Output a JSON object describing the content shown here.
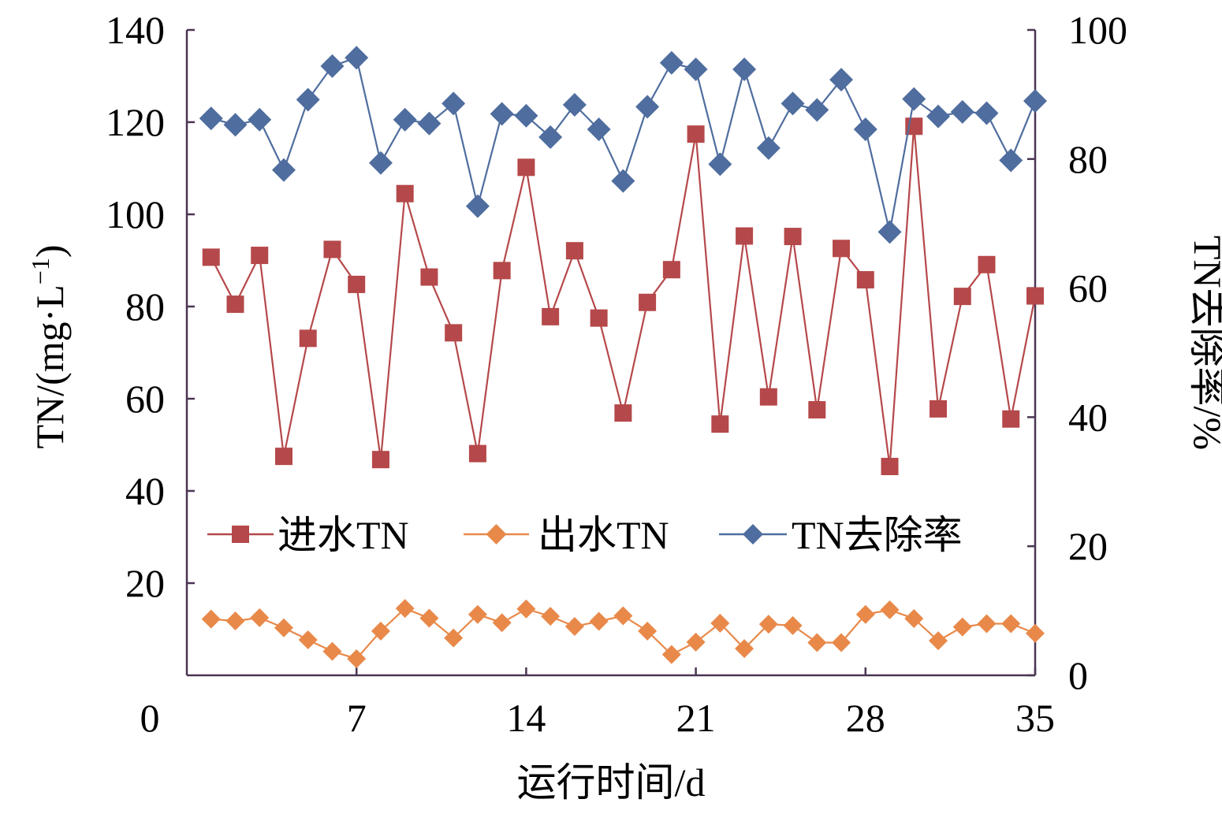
{
  "chart_data": {
    "type": "line",
    "xlabel": "运行时间/d",
    "ylabel_left": "TN/(mg·L",
    "ylabel_left_sup": "−1",
    "ylabel_left_end": ")",
    "ylabel_right": "TN去除率/%",
    "xlim": [
      0,
      35
    ],
    "ylim_left": [
      0,
      140
    ],
    "ylim_right": [
      0,
      100
    ],
    "x_ticks": [
      0,
      7,
      14,
      21,
      28,
      35
    ],
    "y_left_ticks": [
      20,
      40,
      60,
      80,
      100,
      120,
      140
    ],
    "y_left_zero_label": "0",
    "y_right_ticks": [
      0,
      20,
      40,
      60,
      80,
      100
    ],
    "grid": false,
    "legend_position": "lower-center",
    "x": [
      1,
      2,
      3,
      4,
      5,
      6,
      7,
      8,
      9,
      10,
      11,
      12,
      13,
      14,
      15,
      16,
      17,
      18,
      19,
      20,
      21,
      22,
      23,
      24,
      25,
      26,
      27,
      28,
      29,
      30,
      31,
      32,
      33,
      34,
      35
    ],
    "series": [
      {
        "name": "进水TN",
        "axis": "left",
        "color": "#b5484a",
        "marker": "square",
        "values": [
          90.7,
          80.5,
          91.1,
          47.5,
          73.1,
          92.4,
          84.8,
          46.8,
          104.5,
          86.4,
          74.3,
          48.1,
          87.8,
          110.2,
          77.8,
          92.1,
          77.5,
          56.9,
          80.9,
          88.0,
          117.4,
          54.5,
          95.3,
          60.4,
          95.2,
          57.6,
          92.6,
          85.8,
          45.3,
          119.1,
          57.8,
          82.2,
          89.1,
          55.6,
          82.3
        ]
      },
      {
        "name": "出水TN",
        "axis": "left",
        "color": "#e8894a",
        "marker": "diamond",
        "values": [
          12.2,
          11.8,
          12.5,
          10.3,
          7.7,
          5.2,
          3.6,
          9.6,
          14.5,
          12.4,
          8.1,
          13.2,
          11.4,
          14.4,
          12.8,
          10.6,
          11.7,
          12.9,
          9.6,
          4.5,
          7.2,
          11.3,
          5.8,
          11.1,
          10.8,
          7.1,
          7.1,
          13.2,
          14.2,
          12.3,
          7.5,
          10.5,
          11.2,
          11.2,
          9.1
        ]
      },
      {
        "name": "TN去除率",
        "axis": "right",
        "color": "#4f6d9e",
        "marker": "diamond",
        "values": [
          86.3,
          85.3,
          86.1,
          78.3,
          89.2,
          94.4,
          95.7,
          79.4,
          86.1,
          85.5,
          88.6,
          72.7,
          87.0,
          86.7,
          83.4,
          88.4,
          84.6,
          76.6,
          88.1,
          94.9,
          93.9,
          79.2,
          93.9,
          81.7,
          88.6,
          87.6,
          92.3,
          84.6,
          68.7,
          89.3,
          86.6,
          87.3,
          87.1,
          79.8,
          89.0
        ]
      }
    ]
  }
}
